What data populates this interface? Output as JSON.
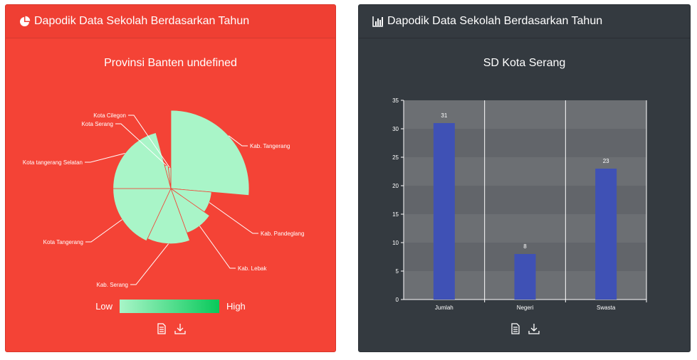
{
  "left_card": {
    "header_title": "Dapodik Data Sekolah Berdasarkan Tahun",
    "chart_title": "Provinsi Banten undefined",
    "legend": {
      "low": "Low",
      "high": "High"
    },
    "colors": {
      "card_bg": "#f44336",
      "slice": "#a9f5c8"
    }
  },
  "right_card": {
    "header_title": "Dapodik Data Sekolah Berdasarkan Tahun",
    "chart_title": "SD Kota Serang",
    "colors": {
      "card_bg": "#343a40",
      "bar": "#3f51b5"
    }
  },
  "chart_data": [
    {
      "type": "pie",
      "title": "Provinsi Banten undefined",
      "slices": [
        {
          "label": "Kab. Tangerang",
          "value": 110
        },
        {
          "label": "Kab. Pandeglang",
          "value": 30
        },
        {
          "label": "Kab. Lebak",
          "value": 40
        },
        {
          "label": "Kab. Serang",
          "value": 55
        },
        {
          "label": "Kota Tangerang",
          "value": 60
        },
        {
          "label": "Kota tangerang Selatan",
          "value": 60
        },
        {
          "label": "Kota Serang",
          "value": 10
        },
        {
          "label": "Kota Cilegon",
          "value": 8
        }
      ]
    },
    {
      "type": "bar",
      "title": "SD Kota Serang",
      "categories": [
        "Jumlah",
        "Negeri",
        "Swasta"
      ],
      "values": [
        31,
        8,
        23
      ],
      "ylim": [
        0,
        35
      ],
      "yticks": [
        "0",
        "5",
        "10",
        "15",
        "20",
        "25",
        "30",
        "35"
      ],
      "grid": true
    }
  ]
}
